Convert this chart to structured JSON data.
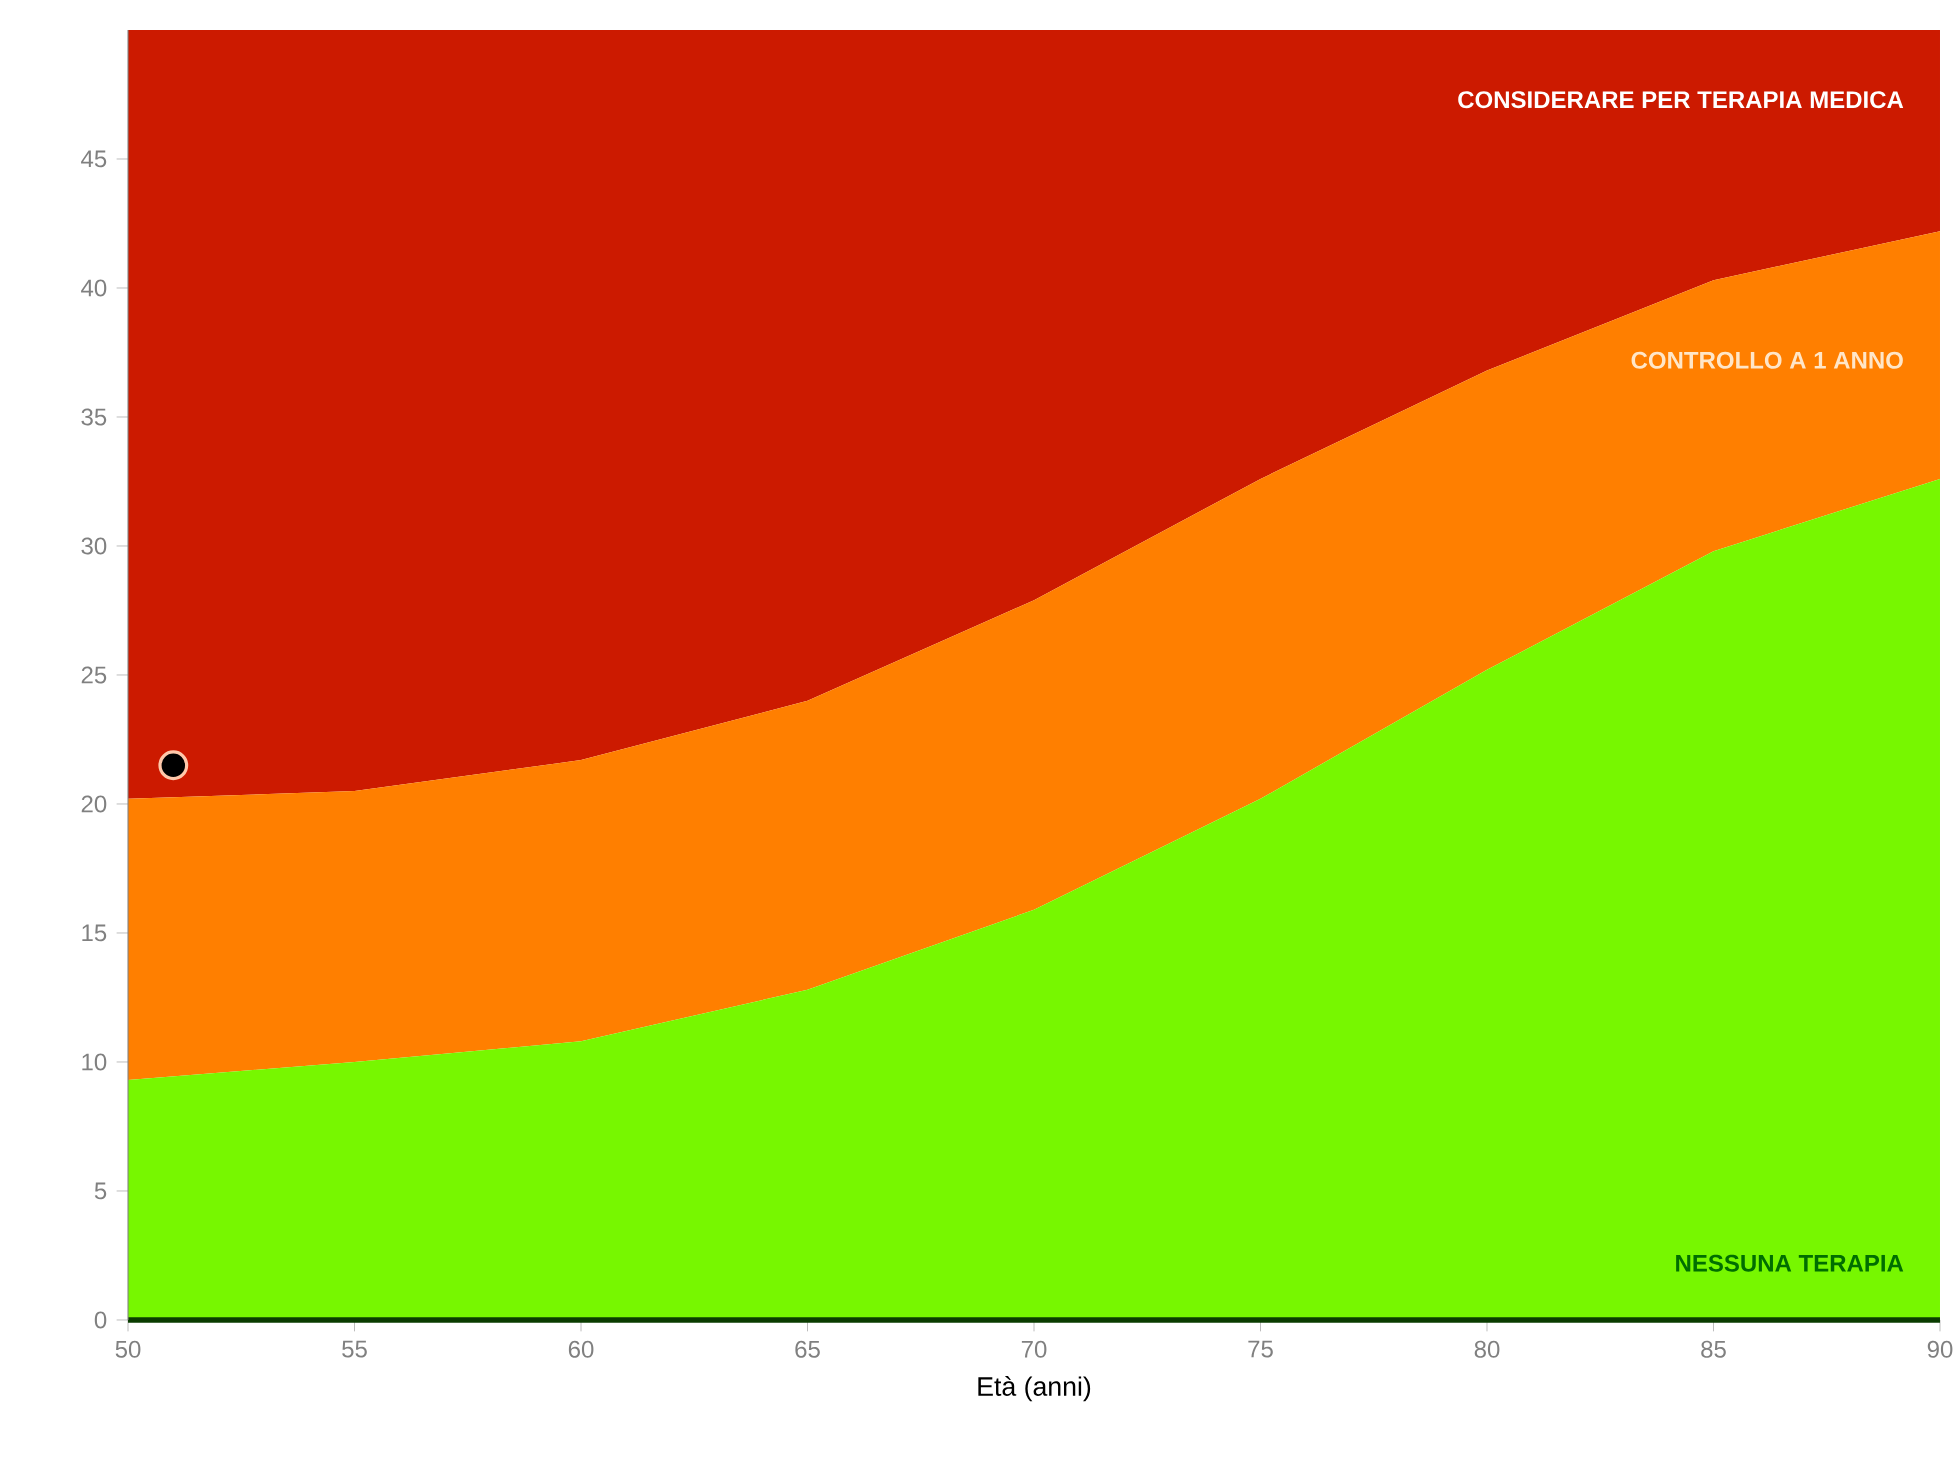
{
  "chart_data": {
    "type": "area",
    "stacked": true,
    "xlabel": "Età (anni)",
    "x": [
      50,
      55,
      60,
      65,
      70,
      75,
      80,
      85,
      90
    ],
    "series": [
      {
        "color": "#77f700",
        "values": [
          9.3,
          10,
          10.8,
          12.8,
          15.9,
          20.2,
          25.2,
          29.8,
          32.6
        ]
      },
      {
        "color": "#ff7f00",
        "values": [
          10.9,
          10.5,
          10.9,
          11.2,
          12,
          12.4,
          11.6,
          10.5,
          9.6
        ]
      },
      {
        "color": "#cc1a00",
        "values": [
          29.8,
          29.5,
          28.3,
          26,
          22.1,
          17.4,
          13.2,
          9.7,
          7.8
        ]
      },
      {
        "type": "scatter",
        "color": "#000000",
        "x": [
          51
        ],
        "values": [
          21.5
        ],
        "marker": "circle"
      }
    ],
    "xlim": [
      50,
      90
    ],
    "ylim": [
      0,
      50
    ],
    "xticks": [
      50,
      55,
      60,
      65,
      70,
      75,
      80,
      85,
      90
    ],
    "yticks": [
      0,
      5,
      10,
      15,
      20,
      25,
      30,
      35,
      40,
      45
    ],
    "annotations": [
      "CONSIDERARE PER TERAPIA MEDICA",
      "CONTROLLO A 1 ANNO",
      "NESSUNA TERAPIA"
    ]
  }
}
